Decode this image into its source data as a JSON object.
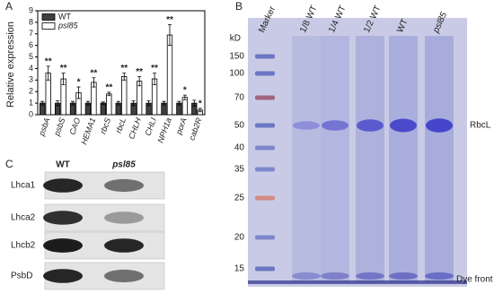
{
  "chart_data": {
    "type": "bar",
    "panel": "A",
    "y_label": "Relative expression",
    "categories": [
      "psbA",
      "psbS",
      "CAO",
      "HEMA1",
      "rbcS",
      "rbcL",
      "CHLH",
      "CHLI",
      "NPH1a",
      "porA",
      "cab2R"
    ],
    "series": [
      {
        "name": "WT",
        "color": "#404040",
        "values": [
          1,
          1,
          1,
          1,
          1,
          1,
          1,
          1,
          1,
          1,
          1
        ],
        "errors": [
          0.15,
          0.2,
          0.15,
          0.15,
          0.1,
          0.15,
          0.2,
          0.2,
          0.15,
          0.15,
          0.25
        ]
      },
      {
        "name": "psl85",
        "color": "#ffffff",
        "values": [
          3.6,
          3.1,
          1.9,
          2.8,
          1.8,
          3.3,
          2.9,
          3.1,
          6.9,
          1.5,
          0.4
        ],
        "errors": [
          0.6,
          0.5,
          0.5,
          0.4,
          0.15,
          0.3,
          0.4,
          0.5,
          0.9,
          0.2,
          0.15
        ],
        "significance": [
          "**",
          "**",
          "*",
          "**",
          "**",
          "**",
          "**",
          "**",
          "**",
          "*",
          "*"
        ]
      }
    ],
    "ylim": [
      0,
      9
    ],
    "yticks": [
      0,
      1,
      2,
      3,
      4,
      5,
      6,
      7,
      8,
      9
    ],
    "legend": "top-left"
  },
  "panel_b": {
    "label": "B",
    "lanes": [
      "Marker",
      "1/8 WT",
      "1/4 WT",
      "1/2 WT",
      "WT",
      "psl85"
    ],
    "unit": "kD",
    "markers": [
      150,
      100,
      70,
      50,
      40,
      35,
      25,
      20,
      15
    ],
    "rbcl": "RbcL",
    "dye_front": "Dye front"
  },
  "panel_c": {
    "label": "C",
    "columns": [
      "WT",
      "psl85"
    ],
    "rows": [
      "Lhca1",
      "Lhca2",
      "Lhcb2",
      "PsbD"
    ]
  }
}
